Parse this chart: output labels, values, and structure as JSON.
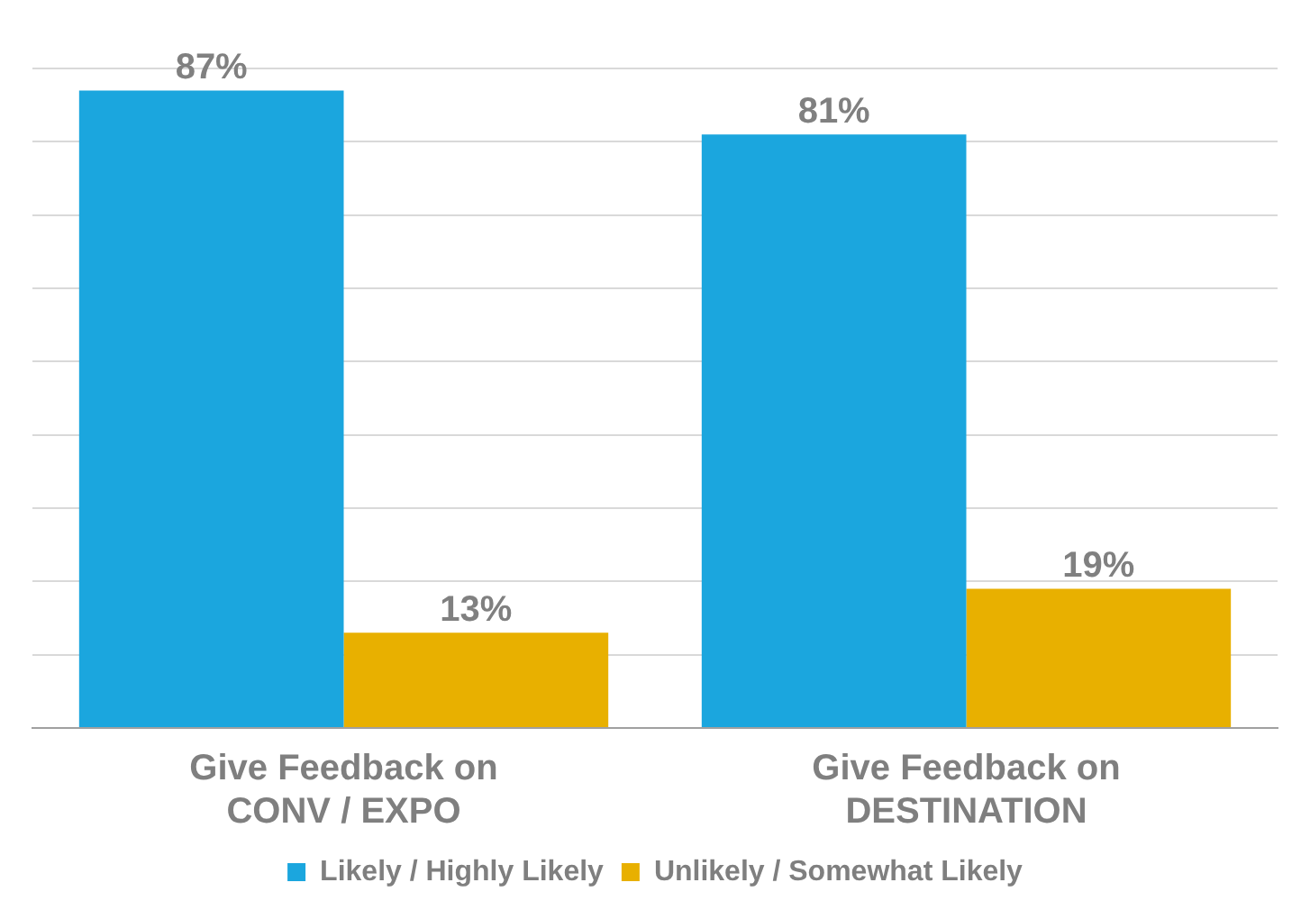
{
  "chart_data": {
    "type": "bar",
    "categories": [
      "Give Feedback on CONV / EXPO",
      "Give Feedback on DESTINATION"
    ],
    "series": [
      {
        "name": "Likely / Highly Likely",
        "color": "#1ba6de",
        "values": [
          87,
          81
        ],
        "value_labels": [
          "87%",
          "81%"
        ]
      },
      {
        "name": "Unlikely / Somewhat Likely",
        "color": "#e8b000",
        "values": [
          13,
          19
        ],
        "value_labels": [
          "13%",
          "19%"
        ]
      }
    ],
    "ylim": [
      0,
      90
    ],
    "yticks": [
      {
        "value": 0,
        "label": null
      },
      {
        "value": 10,
        "label": null
      },
      {
        "value": 20,
        "label": null
      },
      {
        "value": 30,
        "label": null
      },
      {
        "value": 40,
        "label": null
      },
      {
        "value": 50,
        "label": null
      },
      {
        "value": 60,
        "label": null
      },
      {
        "value": 70,
        "label": null
      },
      {
        "value": 80,
        "label": null
      },
      {
        "value": 90,
        "label": null
      }
    ],
    "grid": "y",
    "legend": "bottom",
    "tick_labels": "x"
  }
}
